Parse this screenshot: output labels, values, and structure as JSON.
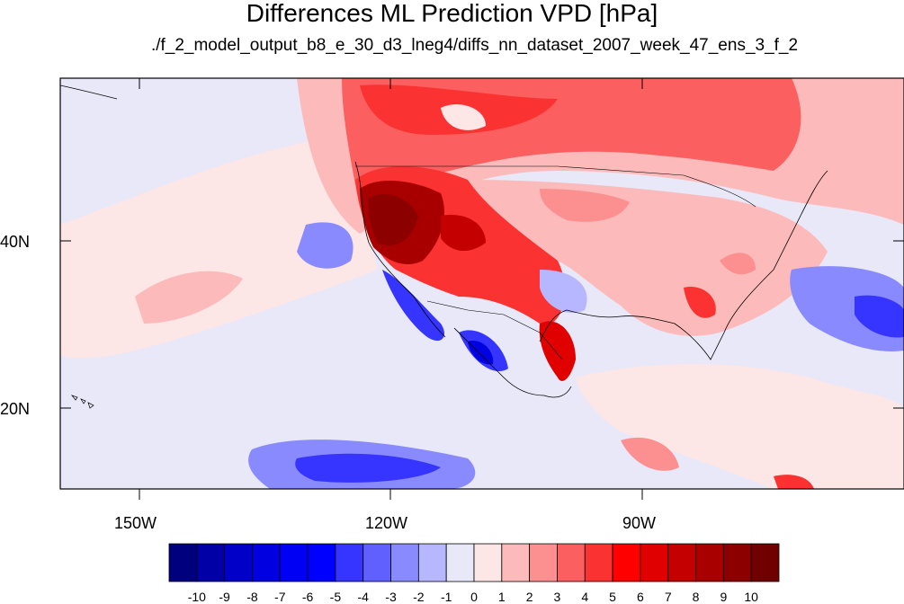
{
  "title": "Differences ML Prediction VPD [hPa]",
  "subtitle": "./f_2_model_output_b8_e_30_d3_lneg4/diffs_nn_dataset_2007_week_47_ens_3_f_2",
  "axes": {
    "lat_labels": [
      "40N",
      "20N"
    ],
    "lon_labels": [
      "150W",
      "120W",
      "90W"
    ],
    "lon_range": [
      -160,
      -60
    ],
    "lat_range": [
      10,
      60
    ]
  },
  "colorbar": {
    "tick_labels": [
      "-10",
      "-9",
      "-8",
      "-7",
      "-6",
      "-5",
      "-4",
      "-3",
      "-2",
      "-1",
      "0",
      "1",
      "2",
      "3",
      "4",
      "5",
      "6",
      "7",
      "8",
      "9",
      "10"
    ],
    "colors": [
      "#00007e",
      "#0000a6",
      "#0000c8",
      "#0000e0",
      "#0000f5",
      "#0000ff",
      "#3535ff",
      "#6060ff",
      "#8a8aff",
      "#b7b7ff",
      "#e8e8f8",
      "#fde6e6",
      "#fcbaba",
      "#fc8f8f",
      "#fc5f5f",
      "#fb3232",
      "#ff0000",
      "#e00000",
      "#c40000",
      "#a80000",
      "#8c0000",
      "#700000"
    ]
  },
  "colors": {
    "background_field": "#e8e8f8",
    "coast": "#000000"
  }
}
